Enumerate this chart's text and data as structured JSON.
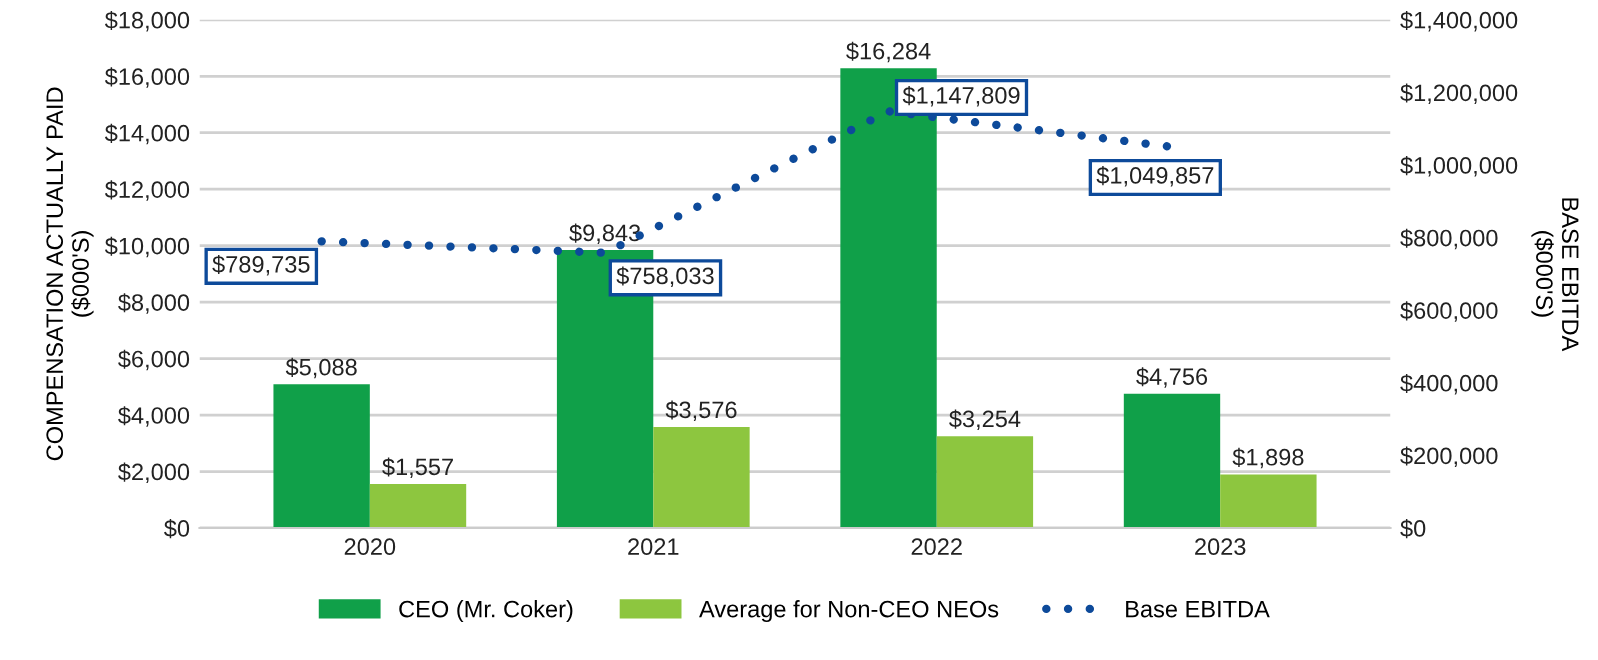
{
  "chart_data": {
    "type": "bar",
    "categories": [
      "2020",
      "2021",
      "2022",
      "2023"
    ],
    "series": [
      {
        "name": "CEO (Mr. Coker)",
        "color": "#10a049",
        "values": [
          5088,
          9843,
          16284,
          4756
        ],
        "value_labels": [
          "$5,088",
          "$9,843",
          "$16,284",
          "$4,756"
        ]
      },
      {
        "name": "Average for Non-CEO NEOs",
        "color": "#8dc63f",
        "values": [
          1557,
          3576,
          3254,
          1898
        ],
        "value_labels": [
          "$1,557",
          "$3,576",
          "$3,254",
          "$1,898"
        ]
      },
      {
        "name": "Base EBITDA",
        "type": "line",
        "axis": "y2",
        "color": "#0d4a9a",
        "line_style": "dotted",
        "values": [
          789735,
          758033,
          1147809,
          1049857
        ],
        "value_labels": [
          "$789,735",
          "$758,033",
          "$1,147,809",
          "$1,049,857"
        ]
      }
    ],
    "ylabel": "COMPENSATION ACTUALLY PAID\n($000'S)",
    "y2label": "BASE EBITDA\n($000'S)",
    "ylim": [
      0,
      18000
    ],
    "yticks": [
      {
        "value": 0,
        "label": "$0"
      },
      {
        "value": 2000,
        "label": "$2,000"
      },
      {
        "value": 4000,
        "label": "$4,000"
      },
      {
        "value": 6000,
        "label": "$6,000"
      },
      {
        "value": 8000,
        "label": "$8,000"
      },
      {
        "value": 10000,
        "label": "$10,000"
      },
      {
        "value": 12000,
        "label": "$12,000"
      },
      {
        "value": 14000,
        "label": "$14,000"
      },
      {
        "value": 16000,
        "label": "$16,000"
      },
      {
        "value": 18000,
        "label": "$18,000"
      }
    ],
    "y2lim": [
      0,
      1400000
    ],
    "y2ticks": [
      {
        "value": 0,
        "label": "$0"
      },
      {
        "value": 200000,
        "label": "$200,000"
      },
      {
        "value": 400000,
        "label": "$400,000"
      },
      {
        "value": 600000,
        "label": "$600,000"
      },
      {
        "value": 800000,
        "label": "$800,000"
      },
      {
        "value": 1000000,
        "label": "$1,000,000"
      },
      {
        "value": 1200000,
        "label": "$1,200,000"
      },
      {
        "value": 1400000,
        "label": "$1,400,000"
      }
    ],
    "grid": "y",
    "legend": "bottom"
  }
}
